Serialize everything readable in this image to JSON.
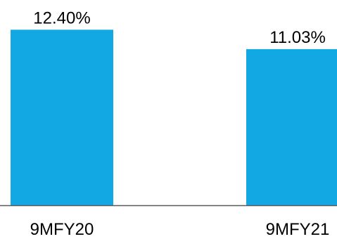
{
  "chart_data": {
    "type": "bar",
    "categories": [
      "9MFY20",
      "9MFY21"
    ],
    "values": [
      12.4,
      11.03
    ],
    "data_labels": [
      "12.40%",
      "11.03%"
    ],
    "title": "",
    "xlabel": "",
    "ylabel": "",
    "ylim": [
      0,
      14.5
    ],
    "grid": false,
    "legend": "none",
    "bar_color": "#12A8E3",
    "axis_color": "#595959"
  }
}
